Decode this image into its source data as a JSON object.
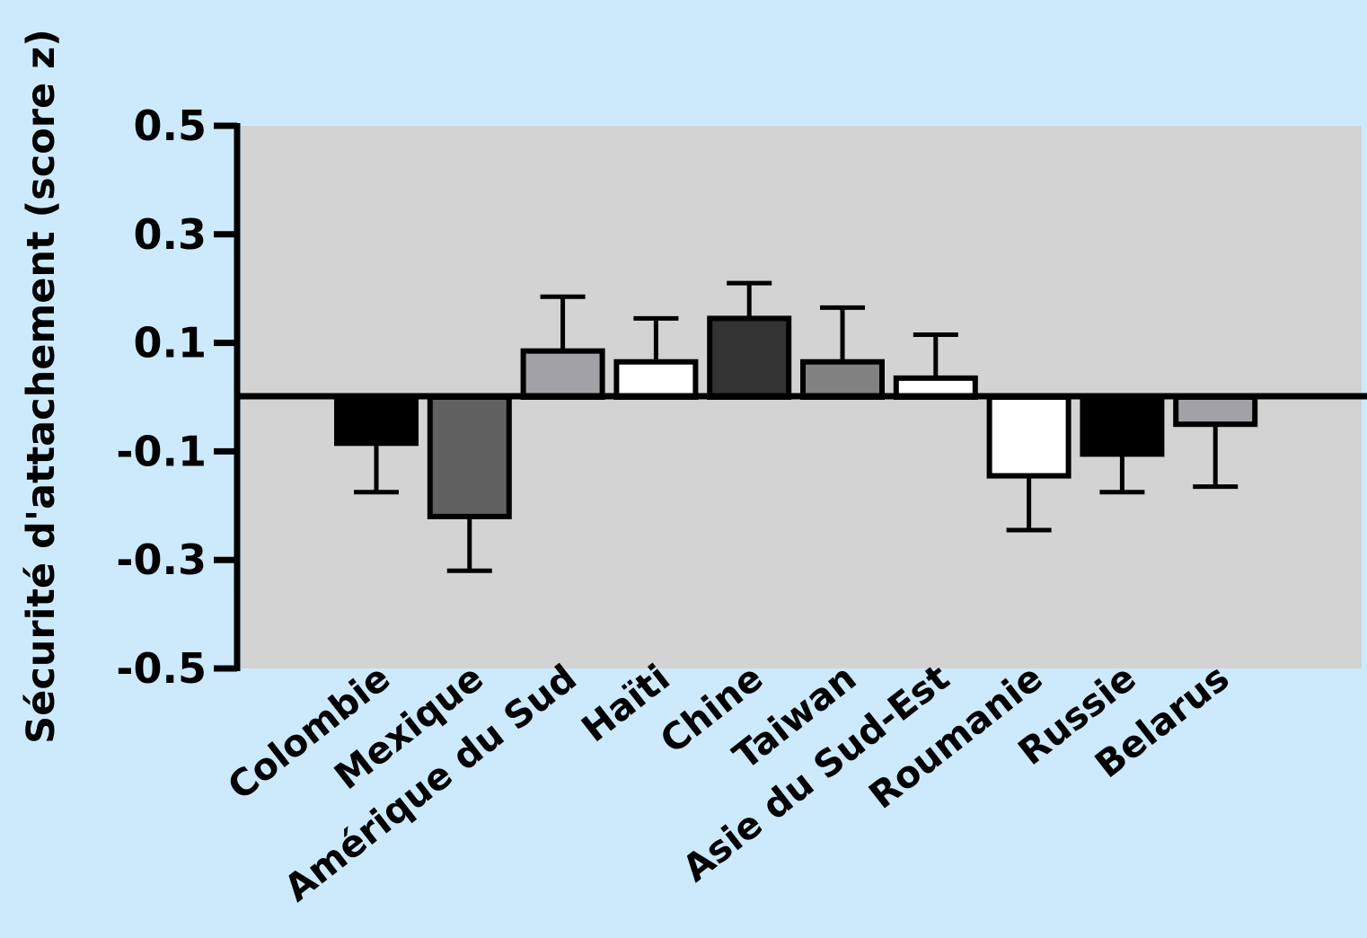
{
  "colors": {
    "background": "#cdeafd",
    "plot_area": "#d3d3d3",
    "axis": "#000000"
  },
  "chart_data": {
    "type": "bar",
    "ylabel": "Sécurité d'attachement (score z)",
    "xlabel": "",
    "ylim": [
      -0.5,
      0.5
    ],
    "yticks": [
      0.5,
      0.3,
      0.1,
      -0.1,
      -0.3,
      -0.5
    ],
    "ytick_labels": [
      "0.5",
      "0.3",
      "0.1",
      "-0.1",
      "-0.3",
      "-0.5"
    ],
    "grid": false,
    "categories": [
      "Colombie",
      "Mexique",
      "Amérique du Sud",
      "Haïti",
      "Chine",
      "Taiwan",
      "Asie du Sud-Est",
      "Roumanie",
      "Russie",
      "Belarus"
    ],
    "values": [
      -0.085,
      -0.22,
      0.085,
      0.065,
      0.145,
      0.065,
      0.035,
      -0.145,
      -0.105,
      -0.05
    ],
    "error_bars": [
      0.09,
      0.1,
      0.1,
      0.08,
      0.065,
      0.1,
      0.08,
      0.1,
      0.07,
      0.115
    ],
    "bar_colors": [
      "#000000",
      "#616161",
      "#a2a2a6",
      "#ffffff",
      "#333333",
      "#828282",
      "#ffffff",
      "#ffffff",
      "#000000",
      "#a2a2a6"
    ]
  }
}
